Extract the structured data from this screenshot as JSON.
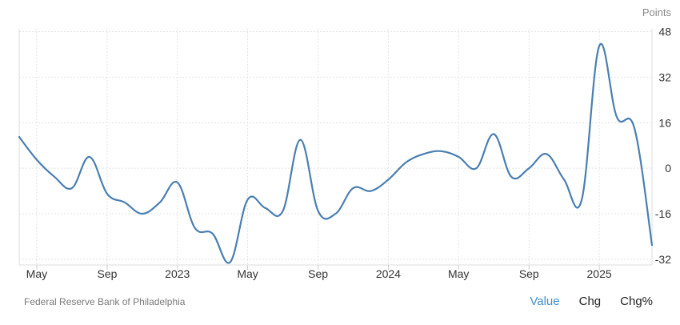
{
  "chart_data": {
    "type": "line",
    "unit_label": "Points",
    "source": "Federal Reserve Bank of Philadelphia",
    "y_ticks": [
      48,
      32,
      16,
      0,
      -16,
      -32
    ],
    "ylim": [
      -34,
      49
    ],
    "x_ticks": [
      {
        "label": "May",
        "x": 2022.333
      },
      {
        "label": "Sep",
        "x": 2022.667
      },
      {
        "label": "2023",
        "x": 2023.0
      },
      {
        "label": "May",
        "x": 2023.333
      },
      {
        "label": "Sep",
        "x": 2023.667
      },
      {
        "label": "2024",
        "x": 2024.0
      },
      {
        "label": "May",
        "x": 2024.333
      },
      {
        "label": "Sep",
        "x": 2024.667
      },
      {
        "label": "2025",
        "x": 2025.0
      }
    ],
    "xlim": [
      2022.25,
      2025.25
    ],
    "grid": true,
    "series": [
      {
        "color": "#4a7fb0",
        "x": [
          2022.25,
          2022.333,
          2022.417,
          2022.5,
          2022.583,
          2022.667,
          2022.75,
          2022.833,
          2022.917,
          2023.0,
          2023.083,
          2023.167,
          2023.25,
          2023.333,
          2023.417,
          2023.5,
          2023.583,
          2023.667,
          2023.75,
          2023.833,
          2023.917,
          2024.0,
          2024.083,
          2024.167,
          2024.25,
          2024.333,
          2024.417,
          2024.5,
          2024.583,
          2024.667,
          2024.75,
          2024.833,
          2024.917,
          2025.0,
          2025.083,
          2025.167,
          2025.25
        ],
        "values": [
          11,
          3,
          -3,
          -7,
          4,
          -9,
          -12,
          -16,
          -12,
          -5,
          -21,
          -23,
          -33,
          -11,
          -14,
          -15,
          10,
          -15,
          -16,
          -7,
          -8,
          -4,
          2,
          5,
          6,
          4,
          0,
          12,
          -3,
          0,
          5,
          -4,
          -11,
          43,
          18,
          14,
          -27
        ]
      }
    ]
  },
  "footer": {
    "source": "Federal Reserve Bank of Philadelphia",
    "modes": [
      "Value",
      "Chg",
      "Chg%"
    ],
    "active_mode": "Value"
  }
}
